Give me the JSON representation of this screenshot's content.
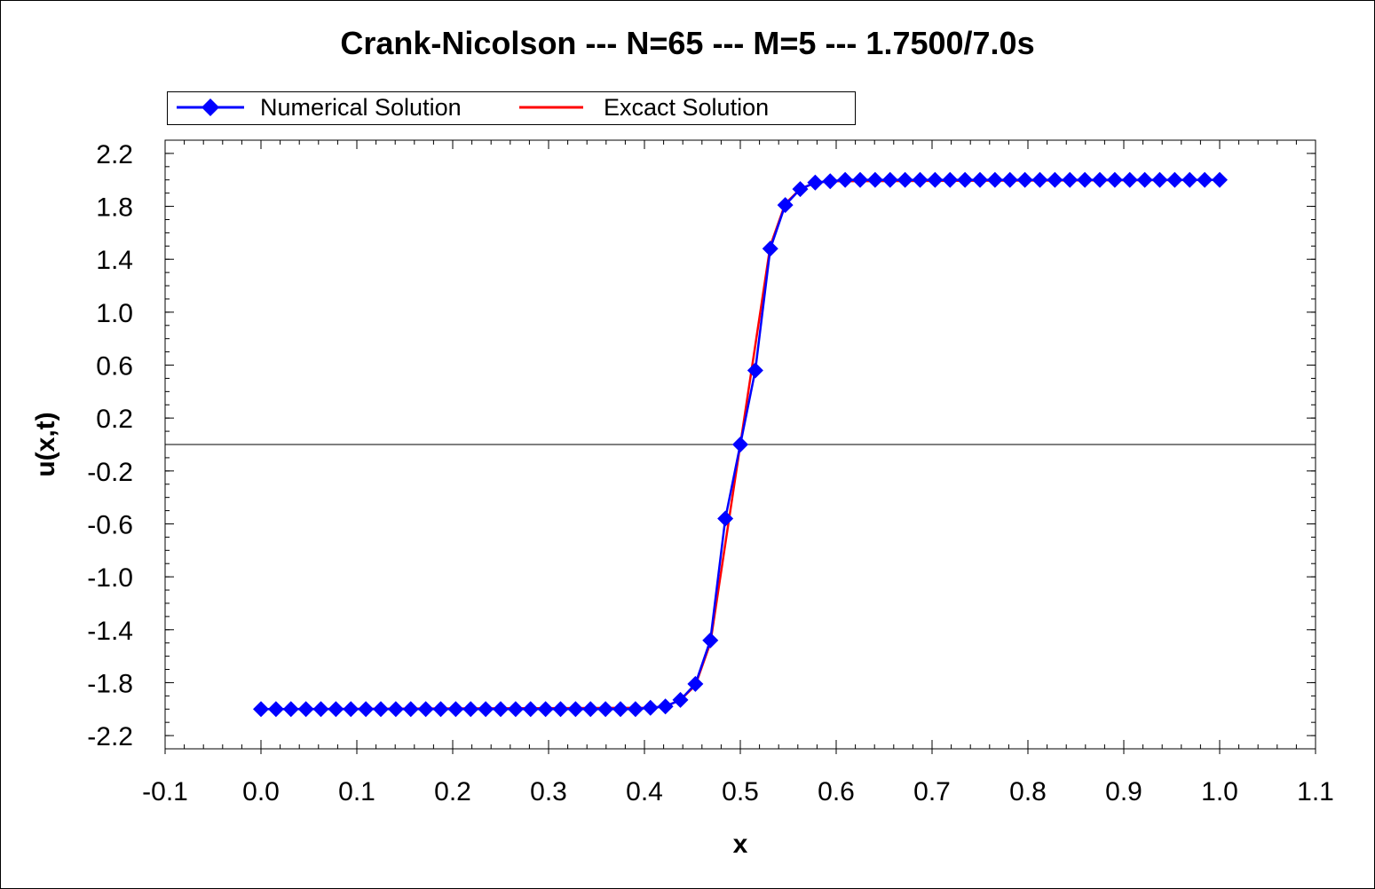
{
  "chart_data": {
    "type": "line",
    "title": "Crank-Nicolson --- N=65 --- M=5 --- 1.7500/7.0s",
    "xlabel": "x",
    "ylabel": "u(x,t)",
    "xlim": [
      -0.1,
      1.1
    ],
    "ylim": [
      -2.3,
      2.3
    ],
    "x_ticks": [
      "-0.1",
      "0.0",
      "0.1",
      "0.2",
      "0.3",
      "0.4",
      "0.5",
      "0.6",
      "0.7",
      "0.8",
      "0.9",
      "1.0",
      "1.1"
    ],
    "y_ticks": [
      "2.2",
      "1.8",
      "1.4",
      "1.0",
      "0.6",
      "0.2",
      "-0.2",
      "-0.6",
      "-1.0",
      "-1.4",
      "-1.8",
      "-2.2"
    ],
    "grid": false,
    "zero_line": true,
    "legend_position": "top",
    "series": [
      {
        "name": "Numerical Solution",
        "color": "#0000ff",
        "marker": "diamond",
        "x": [
          0.0,
          0.015625,
          0.03125,
          0.046875,
          0.0625,
          0.078125,
          0.09375,
          0.109375,
          0.125,
          0.140625,
          0.15625,
          0.171875,
          0.1875,
          0.203125,
          0.21875,
          0.234375,
          0.25,
          0.265625,
          0.28125,
          0.296875,
          0.3125,
          0.328125,
          0.34375,
          0.359375,
          0.375,
          0.390625,
          0.40625,
          0.421875,
          0.4375,
          0.453125,
          0.46875,
          0.484375,
          0.5,
          0.515625,
          0.53125,
          0.546875,
          0.5625,
          0.578125,
          0.59375,
          0.609375,
          0.625,
          0.640625,
          0.65625,
          0.671875,
          0.6875,
          0.703125,
          0.71875,
          0.734375,
          0.75,
          0.765625,
          0.78125,
          0.796875,
          0.8125,
          0.828125,
          0.84375,
          0.859375,
          0.875,
          0.890625,
          0.90625,
          0.921875,
          0.9375,
          0.953125,
          0.96875,
          0.984375,
          1.0
        ],
        "y": [
          -2.0,
          -2.0,
          -2.0,
          -2.0,
          -2.0,
          -2.0,
          -2.0,
          -2.0,
          -2.0,
          -2.0,
          -2.0,
          -2.0,
          -2.0,
          -2.0,
          -2.0,
          -2.0,
          -2.0,
          -2.0,
          -2.0,
          -2.0,
          -2.0,
          -2.0,
          -2.0,
          -2.0,
          -2.0,
          -2.0,
          -1.99,
          -1.98,
          -1.93,
          -1.81,
          -1.48,
          -0.56,
          0.0,
          0.56,
          1.48,
          1.81,
          1.93,
          1.98,
          1.99,
          2.0,
          2.0,
          2.0,
          2.0,
          2.0,
          2.0,
          2.0,
          2.0,
          2.0,
          2.0,
          2.0,
          2.0,
          2.0,
          2.0,
          2.0,
          2.0,
          2.0,
          2.0,
          2.0,
          2.0,
          2.0,
          2.0,
          2.0,
          2.0,
          2.0,
          2.0
        ]
      },
      {
        "name": "Excact Solution",
        "color": "#ff0000",
        "marker": "none",
        "x": [
          0.0,
          0.40625,
          0.421875,
          0.4375,
          0.453125,
          0.46875,
          0.484375,
          0.5,
          0.515625,
          0.53125,
          0.546875,
          0.5625,
          0.578125,
          0.59375,
          1.0
        ],
        "y": [
          -2.0,
          -1.99,
          -1.98,
          -1.93,
          -1.82,
          -1.5,
          -0.75,
          0.0,
          0.75,
          1.5,
          1.82,
          1.93,
          1.98,
          1.99,
          2.0
        ]
      }
    ]
  }
}
